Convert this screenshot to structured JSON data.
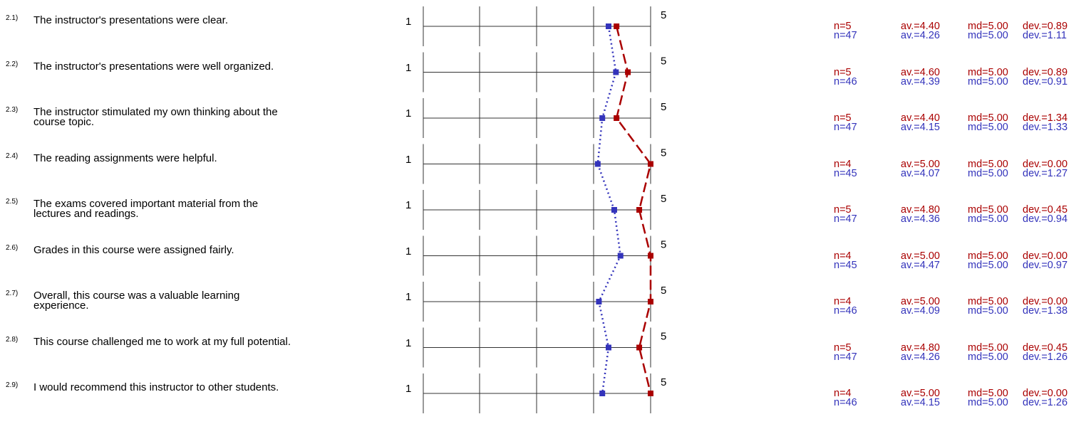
{
  "scale": {
    "min_label": "1",
    "max_label": "5",
    "min": 1,
    "max": 5
  },
  "colors": {
    "series1": "#aa0000",
    "series2": "#3333bb",
    "grid": "#333333"
  },
  "chart_data": {
    "type": "line",
    "orientation": "vertical-profile",
    "categories": [
      "2.1)",
      "2.2)",
      "2.3)",
      "2.4)",
      "2.5)",
      "2.6)",
      "2.7)",
      "2.8)",
      "2.9)"
    ],
    "series": [
      {
        "values": [
          4.4,
          4.6,
          4.4,
          5.0,
          4.8,
          5.0,
          5.0,
          4.8,
          5.0
        ],
        "color": "#aa0000",
        "line_style": "dashed"
      },
      {
        "values": [
          4.26,
          4.39,
          4.15,
          4.07,
          4.36,
          4.47,
          4.09,
          4.26,
          4.15
        ],
        "color": "#3333bb",
        "line_style": "dotted"
      }
    ],
    "xlim": [
      1,
      5
    ]
  },
  "items": [
    {
      "num": "2.1)",
      "text": "The instructor's presentations were clear.",
      "s1": {
        "n": "n=5",
        "av": "av.=4.40",
        "md": "md=5.00",
        "dev": "dev.=0.89"
      },
      "s2": {
        "n": "n=47",
        "av": "av.=4.26",
        "md": "md=5.00",
        "dev": "dev.=1.11"
      }
    },
    {
      "num": "2.2)",
      "text": "The instructor's presentations were well organized.",
      "s1": {
        "n": "n=5",
        "av": "av.=4.60",
        "md": "md=5.00",
        "dev": "dev.=0.89"
      },
      "s2": {
        "n": "n=46",
        "av": "av.=4.39",
        "md": "md=5.00",
        "dev": "dev.=0.91"
      }
    },
    {
      "num": "2.3)",
      "text": "The instructor stimulated my own thinking about the course topic.",
      "s1": {
        "n": "n=5",
        "av": "av.=4.40",
        "md": "md=5.00",
        "dev": "dev.=1.34"
      },
      "s2": {
        "n": "n=47",
        "av": "av.=4.15",
        "md": "md=5.00",
        "dev": "dev.=1.33"
      }
    },
    {
      "num": "2.4)",
      "text": "The reading assignments were helpful.",
      "s1": {
        "n": "n=4",
        "av": "av.=5.00",
        "md": "md=5.00",
        "dev": "dev.=0.00"
      },
      "s2": {
        "n": "n=45",
        "av": "av.=4.07",
        "md": "md=5.00",
        "dev": "dev.=1.27"
      }
    },
    {
      "num": "2.5)",
      "text": "The exams covered important material from the lectures and readings.",
      "s1": {
        "n": "n=5",
        "av": "av.=4.80",
        "md": "md=5.00",
        "dev": "dev.=0.45"
      },
      "s2": {
        "n": "n=47",
        "av": "av.=4.36",
        "md": "md=5.00",
        "dev": "dev.=0.94"
      }
    },
    {
      "num": "2.6)",
      "text": "Grades in this course were assigned fairly.",
      "s1": {
        "n": "n=4",
        "av": "av.=5.00",
        "md": "md=5.00",
        "dev": "dev.=0.00"
      },
      "s2": {
        "n": "n=45",
        "av": "av.=4.47",
        "md": "md=5.00",
        "dev": "dev.=0.97"
      }
    },
    {
      "num": "2.7)",
      "text": "Overall, this course was a valuable learning experience.",
      "s1": {
        "n": "n=4",
        "av": "av.=5.00",
        "md": "md=5.00",
        "dev": "dev.=0.00"
      },
      "s2": {
        "n": "n=46",
        "av": "av.=4.09",
        "md": "md=5.00",
        "dev": "dev.=1.38"
      }
    },
    {
      "num": "2.8)",
      "text": "This course challenged me to work at my full potential.",
      "s1": {
        "n": "n=5",
        "av": "av.=4.80",
        "md": "md=5.00",
        "dev": "dev.=0.45"
      },
      "s2": {
        "n": "n=47",
        "av": "av.=4.26",
        "md": "md=5.00",
        "dev": "dev.=1.26"
      }
    },
    {
      "num": "2.9)",
      "text": "I would recommend this instructor to other students.",
      "s1": {
        "n": "n=4",
        "av": "av.=5.00",
        "md": "md=5.00",
        "dev": "dev.=0.00"
      },
      "s2": {
        "n": "n=46",
        "av": "av.=4.15",
        "md": "md=5.00",
        "dev": "dev.=1.26"
      }
    }
  ]
}
